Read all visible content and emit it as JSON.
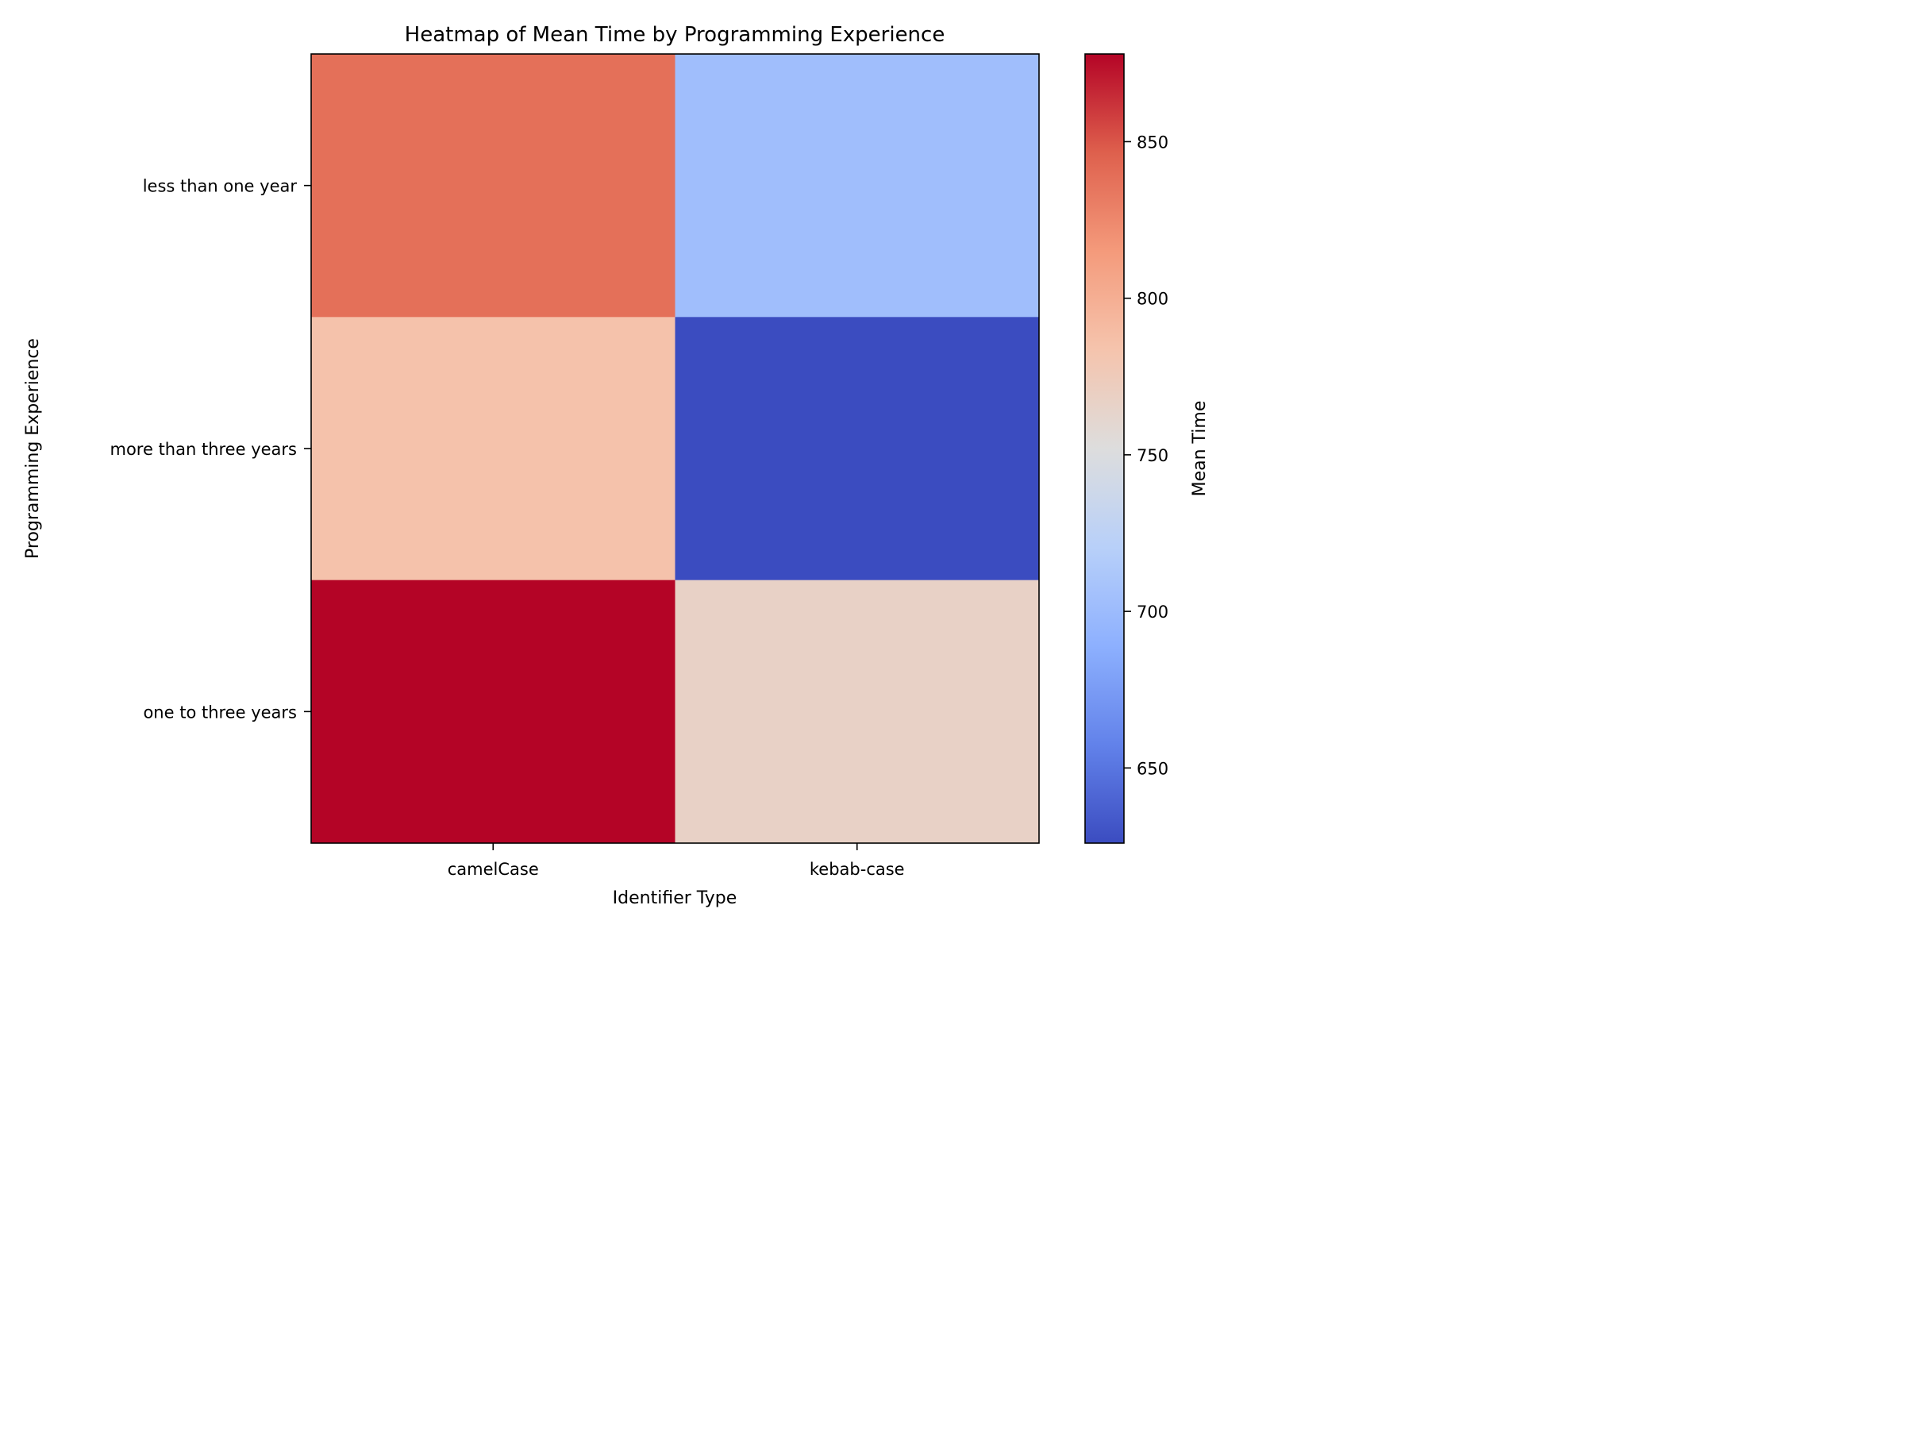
{
  "chart_data": {
    "type": "heatmap",
    "title": "Heatmap of Mean Time by Programming Experience",
    "xlabel": "Identifier Type",
    "ylabel": "Programming Experience",
    "colorbar_label": "Mean Time",
    "x_categories": [
      "camelCase",
      "kebab-case"
    ],
    "y_categories": [
      "less than one year",
      "more than three years",
      "one to three years"
    ],
    "values": [
      [
        838,
        703
      ],
      [
        785,
        626
      ],
      [
        878,
        767
      ]
    ],
    "colorscale": "coolwarm",
    "vmin": 626,
    "vmax": 878,
    "colorbar_ticks": [
      650,
      700,
      750,
      800,
      850
    ],
    "grid": false,
    "colors": {
      "low": "#3b4cc0",
      "mid": "#dddddd",
      "high": "#b40426"
    }
  }
}
